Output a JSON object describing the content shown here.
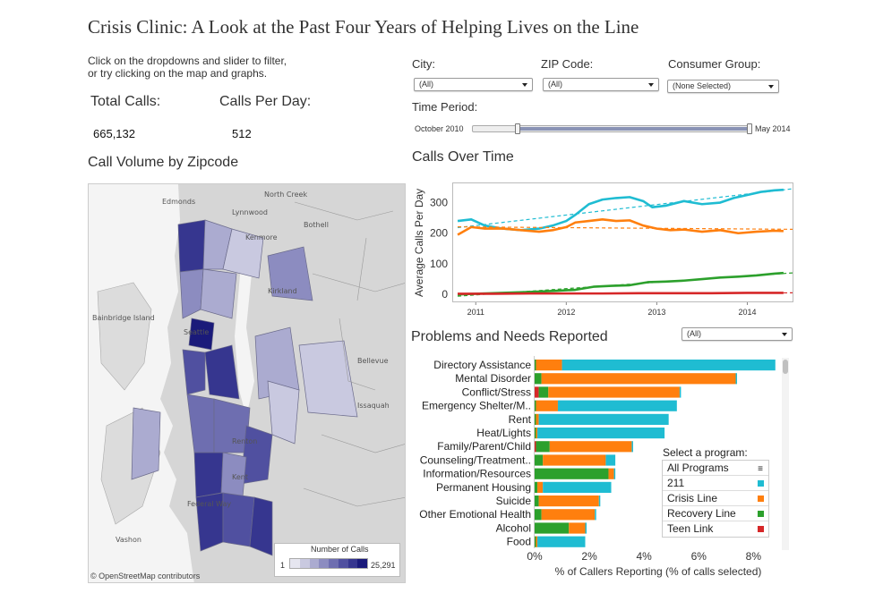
{
  "title": "Crisis Clinic: A Look at the Past Four Years of Helping Lives on the Line",
  "instructions": [
    "Click on the dropdowns and slider to filter,",
    "or try clicking on the map and graphs."
  ],
  "kpis": {
    "total_calls_label": "Total Calls:",
    "total_calls_value": "665,132",
    "calls_per_day_label": "Calls Per Day:",
    "calls_per_day_value": "512"
  },
  "filters": {
    "city_label": "City:",
    "city_value": "(All)",
    "zip_label": "ZIP Code:",
    "zip_value": "(All)",
    "consumer_label": "Consumer Group:",
    "consumer_value": "(None Selected)",
    "time_label": "Time Period:",
    "time_start": "October 2010",
    "time_end": "May 2014"
  },
  "map": {
    "title": "Call Volume by Zipcode",
    "attribution": "© OpenStreetMap contributors",
    "legend_title": "Number of Calls",
    "legend_min": "1",
    "legend_max": "25,291",
    "place_labels": [
      "North Creek",
      "Edmonds",
      "Lynnwood",
      "Bothell",
      "Kenmore",
      "Kirkland",
      "Bainbridge Island",
      "Seattle",
      "Bellevue",
      "Issaquah",
      "Renton",
      "Kent",
      "Federal Way",
      "Vashon"
    ],
    "legend_colors": [
      "#e6e6f0",
      "#c9c9e0",
      "#ababd0",
      "#8c8cc0",
      "#6e6eb0",
      "#5050a0",
      "#36368f",
      "#1a1a7a"
    ]
  },
  "calls_over_time": {
    "title": "Calls Over Time",
    "ylabel": "Average Calls Per Day",
    "colors": {
      "211": "#1fbcd2",
      "crisis": "#ff7f0e",
      "recovery": "#2ca02c",
      "teen": "#d62728"
    }
  },
  "problems": {
    "title": "Problems and Needs Reported",
    "dropdown_value": "(All)",
    "xlabel": "% of Callers Reporting (% of calls selected)",
    "program_title": "Select a program:",
    "programs": [
      {
        "label": "All Programs",
        "color": ""
      },
      {
        "label": "211",
        "color": "#1fbcd2"
      },
      {
        "label": "Crisis Line",
        "color": "#ff7f0e"
      },
      {
        "label": "Recovery Line",
        "color": "#2ca02c"
      },
      {
        "label": "Teen Link",
        "color": "#d62728"
      }
    ]
  },
  "chart_data": [
    {
      "type": "line",
      "title": "Calls Over Time",
      "ylabel": "Average Calls Per Day",
      "xlabel": "",
      "x_ticks": [
        "2011",
        "2012",
        "2013",
        "2014"
      ],
      "y_ticks": [
        0,
        100,
        200,
        300
      ],
      "xlim": [
        2010.75,
        2014.5
      ],
      "ylim": [
        -20,
        360
      ],
      "trendlines": true,
      "series": [
        {
          "name": "211",
          "color": "#1fbcd2",
          "x": [
            2010.8,
            2010.95,
            2011.1,
            2011.3,
            2011.5,
            2011.7,
            2011.85,
            2012.0,
            2012.1,
            2012.25,
            2012.4,
            2012.55,
            2012.7,
            2012.85,
            2012.95,
            2013.1,
            2013.3,
            2013.5,
            2013.7,
            2013.85,
            2014.0,
            2014.15,
            2014.3,
            2014.4
          ],
          "y": [
            240,
            245,
            225,
            215,
            210,
            215,
            225,
            240,
            260,
            295,
            310,
            315,
            318,
            305,
            285,
            290,
            305,
            295,
            300,
            315,
            325,
            335,
            340,
            342
          ]
        },
        {
          "name": "Crisis Line",
          "color": "#ff7f0e",
          "x": [
            2010.8,
            2010.95,
            2011.1,
            2011.3,
            2011.5,
            2011.7,
            2011.85,
            2012.0,
            2012.1,
            2012.25,
            2012.4,
            2012.55,
            2012.7,
            2012.85,
            2013.0,
            2013.15,
            2013.3,
            2013.5,
            2013.7,
            2013.9,
            2014.1,
            2014.3,
            2014.4
          ],
          "y": [
            195,
            220,
            215,
            215,
            210,
            205,
            210,
            220,
            235,
            240,
            245,
            240,
            242,
            225,
            215,
            210,
            212,
            205,
            210,
            200,
            205,
            208,
            207
          ]
        },
        {
          "name": "Recovery Line",
          "color": "#2ca02c",
          "x": [
            2010.8,
            2011.0,
            2011.3,
            2011.6,
            2011.9,
            2012.1,
            2012.3,
            2012.5,
            2012.7,
            2012.9,
            2013.1,
            2013.3,
            2013.5,
            2013.7,
            2013.9,
            2014.1,
            2014.3,
            2014.4
          ],
          "y": [
            0,
            2,
            5,
            8,
            12,
            15,
            25,
            28,
            30,
            40,
            42,
            45,
            50,
            55,
            58,
            62,
            68,
            70
          ]
        },
        {
          "name": "Teen Link",
          "color": "#d62728",
          "x": [
            2010.8,
            2011.2,
            2011.6,
            2012.0,
            2012.4,
            2012.8,
            2013.2,
            2013.6,
            2014.0,
            2014.4
          ],
          "y": [
            2,
            2,
            3,
            3,
            3,
            4,
            4,
            4,
            5,
            5
          ]
        }
      ]
    },
    {
      "type": "bar",
      "orientation": "horizontal",
      "stacked": true,
      "title": "Problems and Needs Reported",
      "xlabel": "% of Callers Reporting (% of calls selected)",
      "x_ticks": [
        "0%",
        "2%",
        "4%",
        "6%",
        "8%"
      ],
      "xlim": [
        0,
        9.2
      ],
      "categories": [
        "Directory Assistance",
        "Mental Disorder",
        "Conflict/Stress",
        "Emergency Shelter/M..",
        "Rent",
        "Heat/Lights",
        "Family/Parent/Child",
        "Counseling/Treatment..",
        "Information/Resources",
        "Permanent Housing",
        "Suicide",
        "Other Emotional Health",
        "Alcohol",
        "Food"
      ],
      "series": [
        {
          "name": "Teen Link",
          "color": "#d62728",
          "values": [
            0,
            0,
            0.15,
            0,
            0,
            0,
            0.05,
            0,
            0,
            0,
            0,
            0,
            0,
            0
          ]
        },
        {
          "name": "Recovery Line",
          "color": "#2ca02c",
          "values": [
            0.05,
            0.25,
            0.35,
            0.05,
            0.05,
            0.05,
            0.5,
            0.3,
            2.7,
            0.1,
            0.15,
            0.25,
            1.25,
            0.05
          ]
        },
        {
          "name": "Crisis Line",
          "color": "#ff7f0e",
          "values": [
            0.95,
            7.1,
            4.8,
            0.8,
            0.1,
            0.05,
            3.0,
            2.3,
            0.2,
            0.2,
            2.2,
            1.95,
            0.6,
            0.05
          ]
        },
        {
          "name": "211",
          "color": "#1fbcd2",
          "values": [
            7.8,
            0.05,
            0.05,
            4.35,
            4.75,
            4.65,
            0.05,
            0.35,
            0.05,
            2.5,
            0.05,
            0.05,
            0.05,
            1.75
          ]
        }
      ]
    }
  ]
}
